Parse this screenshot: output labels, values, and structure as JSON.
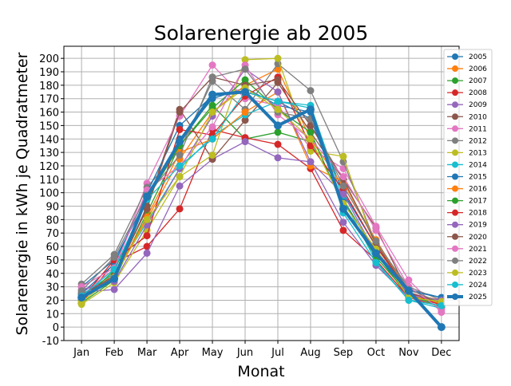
{
  "chart_data": {
    "type": "line",
    "title": "Solarenergie ab 2005",
    "xlabel": "Monat",
    "ylabel": "Solarenergie in kWh je Quadratmeter",
    "categories": [
      "Jan",
      "Feb",
      "Mar",
      "Apr",
      "May",
      "Jun",
      "Jul",
      "Aug",
      "Sep",
      "Oct",
      "Nov",
      "Dec"
    ],
    "ylim": [
      -10,
      209
    ],
    "yticks": [
      -10,
      0,
      10,
      20,
      30,
      40,
      50,
      60,
      70,
      80,
      90,
      100,
      110,
      120,
      130,
      140,
      150,
      160,
      170,
      180,
      190,
      200
    ],
    "grid": true,
    "legend_position": "right",
    "series": [
      {
        "name": "2005",
        "color": "#1f77b4",
        "values": [
          30,
          50,
          95,
          140,
          170,
          178,
          165,
          160,
          100,
          60,
          28,
          22
        ]
      },
      {
        "name": "2006",
        "color": "#ff7f0e",
        "values": [
          20,
          40,
          80,
          125,
          160,
          180,
          192,
          140,
          105,
          65,
          25,
          20
        ]
      },
      {
        "name": "2007",
        "color": "#2ca02c",
        "values": [
          18,
          35,
          85,
          135,
          165,
          140,
          145,
          138,
          95,
          55,
          22,
          18
        ]
      },
      {
        "name": "2008",
        "color": "#d62728",
        "values": [
          18,
          48,
          60,
          88,
          147,
          141,
          136,
          118,
          72,
          50,
          22,
          15
        ]
      },
      {
        "name": "2009",
        "color": "#9467bd",
        "values": [
          26,
          28,
          55,
          105,
          125,
          138,
          126,
          123,
          78,
          46,
          22,
          17
        ]
      },
      {
        "name": "2010",
        "color": "#8c564b",
        "values": [
          22,
          36,
          90,
          162,
          125,
          154,
          182,
          145,
          110,
          74,
          25,
          18
        ]
      },
      {
        "name": "2011",
        "color": "#e377c2",
        "values": [
          25,
          43,
          107,
          157,
          195,
          170,
          165,
          133,
          118,
          75,
          35,
          11
        ]
      },
      {
        "name": "2012",
        "color": "#7f7f7f",
        "values": [
          32,
          54,
          104,
          132,
          183,
          162,
          196,
          176,
          123,
          62,
          30,
          20
        ]
      },
      {
        "name": "2013",
        "color": "#bcbd22",
        "values": [
          17,
          33,
          72,
          112,
          128,
          199,
          200,
          131,
          127,
          58,
          23,
          18
        ]
      },
      {
        "name": "2014",
        "color": "#17becf",
        "values": [
          24,
          40,
          78,
          118,
          142,
          158,
          168,
          165,
          95,
          49,
          20,
          14
        ]
      },
      {
        "name": "2015",
        "color": "#1f77b4",
        "values": [
          25,
          47,
          100,
          150,
          172,
          175,
          168,
          155,
          93,
          57,
          27,
          22
        ]
      },
      {
        "name": "2016",
        "color": "#ff7f0e",
        "values": [
          22,
          38,
          82,
          130,
          140,
          160,
          175,
          120,
          108,
          64,
          24,
          17
        ]
      },
      {
        "name": "2017",
        "color": "#2ca02c",
        "values": [
          20,
          42,
          95,
          135,
          163,
          184,
          162,
          145,
          90,
          52,
          24,
          15
        ]
      },
      {
        "name": "2018",
        "color": "#d62728",
        "values": [
          21,
          50,
          68,
          147,
          143,
          172,
          186,
          135,
          102,
          60,
          26,
          16
        ]
      },
      {
        "name": "2019",
        "color": "#9467bd",
        "values": [
          28,
          34,
          76,
          118,
          157,
          192,
          175,
          123,
          99,
          55,
          24,
          20
        ]
      },
      {
        "name": "2020",
        "color": "#8c564b",
        "values": [
          24,
          38,
          88,
          160,
          186,
          180,
          184,
          150,
          110,
          62,
          26,
          18
        ]
      },
      {
        "name": "2021",
        "color": "#e377c2",
        "values": [
          30,
          44,
          102,
          120,
          149,
          195,
          158,
          140,
          112,
          72,
          30,
          13
        ]
      },
      {
        "name": "2022",
        "color": "#7f7f7f",
        "values": [
          27,
          52,
          98,
          128,
          186,
          192,
          160,
          155,
          105,
          64,
          28,
          18
        ]
      },
      {
        "name": "2023",
        "color": "#bcbd22",
        "values": [
          19,
          37,
          80,
          112,
          160,
          178,
          162,
          140,
          92,
          58,
          22,
          19
        ]
      },
      {
        "name": "2024",
        "color": "#17becf",
        "values": [
          23,
          43,
          95,
          120,
          140,
          175,
          168,
          163,
          85,
          48,
          20,
          16
        ]
      },
      {
        "name": "2025",
        "color": "#1f77b4",
        "highlight": true,
        "values": [
          22,
          36,
          97,
          138,
          173,
          175,
          150,
          162,
          88,
          55,
          27,
          0
        ]
      }
    ]
  }
}
